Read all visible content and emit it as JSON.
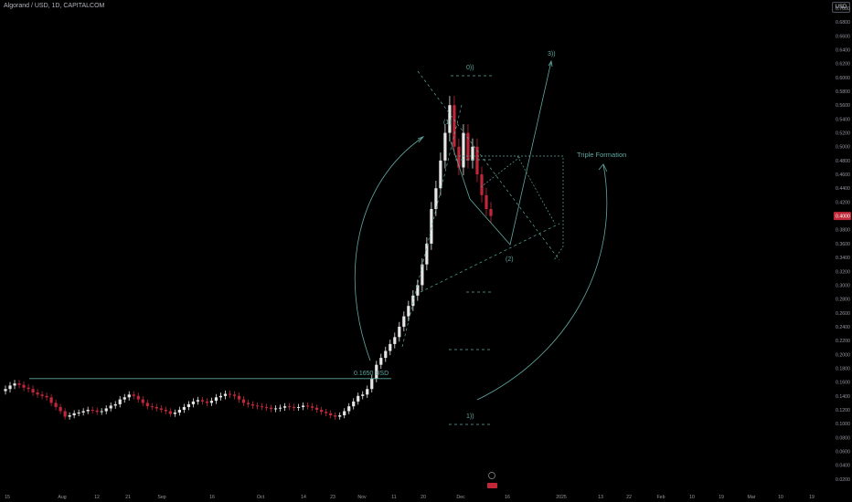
{
  "header": {
    "title": "Algorand / USD, 1D, CAPITALCOM",
    "currency_button": "USD"
  },
  "colors": {
    "up": "#e6e6e6",
    "down": "#c0283a",
    "annotation": "#5fa8a0",
    "background": "#000000",
    "price_tag": "#c0283a"
  },
  "chart_data": {
    "type": "candlestick",
    "title": "Algorand / USD, 1D, CAPITALCOM",
    "ylim": [
      0,
      0.7
    ],
    "y_ticks": [
      "0.0200",
      "0.0400",
      "0.0600",
      "0.0800",
      "0.1000",
      "0.1200",
      "0.1400",
      "0.1600",
      "0.1800",
      "0.2000",
      "0.2200",
      "0.2400",
      "0.2600",
      "0.2800",
      "0.3000",
      "0.3200",
      "0.3400",
      "0.3600",
      "0.3800",
      "0.4000",
      "0.4200",
      "0.4400",
      "0.4600",
      "0.4800",
      "0.5000",
      "0.5200",
      "0.5400",
      "0.5600",
      "0.5800",
      "0.6000",
      "0.6200",
      "0.6400",
      "0.6600",
      "0.6800",
      "0.7000"
    ],
    "x_ticks": [
      "15",
      "Aug",
      "12",
      "21",
      "Sep",
      "16",
      "Oct",
      "14",
      "23",
      "Nov",
      "11",
      "20",
      "Dec",
      "16",
      "2025",
      "13",
      "22",
      "Feb",
      "10",
      "19",
      "Mar",
      "10",
      "19"
    ],
    "current_price": "0.4000",
    "series_desc": "Approximate daily closes from July to early December",
    "closes": [
      0.15,
      0.155,
      0.158,
      0.156,
      0.152,
      0.15,
      0.145,
      0.142,
      0.14,
      0.138,
      0.13,
      0.124,
      0.118,
      0.11,
      0.112,
      0.115,
      0.116,
      0.118,
      0.12,
      0.119,
      0.117,
      0.118,
      0.122,
      0.126,
      0.128,
      0.135,
      0.138,
      0.142,
      0.14,
      0.135,
      0.13,
      0.125,
      0.124,
      0.122,
      0.12,
      0.118,
      0.114,
      0.116,
      0.12,
      0.124,
      0.128,
      0.132,
      0.134,
      0.132,
      0.13,
      0.133,
      0.138,
      0.14,
      0.143,
      0.142,
      0.14,
      0.135,
      0.13,
      0.128,
      0.126,
      0.125,
      0.124,
      0.123,
      0.121,
      0.122,
      0.123,
      0.125,
      0.124,
      0.123,
      0.124,
      0.126,
      0.125,
      0.123,
      0.12,
      0.117,
      0.115,
      0.112,
      0.11,
      0.112,
      0.118,
      0.125,
      0.132,
      0.14,
      0.142,
      0.15,
      0.165,
      0.185,
      0.195,
      0.205,
      0.215,
      0.225,
      0.24,
      0.255,
      0.27,
      0.285,
      0.3,
      0.33,
      0.36,
      0.41,
      0.44,
      0.48,
      0.52,
      0.56,
      0.5,
      0.47,
      0.52,
      0.48,
      0.5,
      0.46,
      0.43,
      0.41,
      0.4
    ],
    "annotations": {
      "support_label": "0.1650 USD",
      "pattern_label": "Triple Formation",
      "wave_labels": [
        "0))",
        "(1)",
        "(2)",
        "1))",
        "3))"
      ]
    }
  }
}
